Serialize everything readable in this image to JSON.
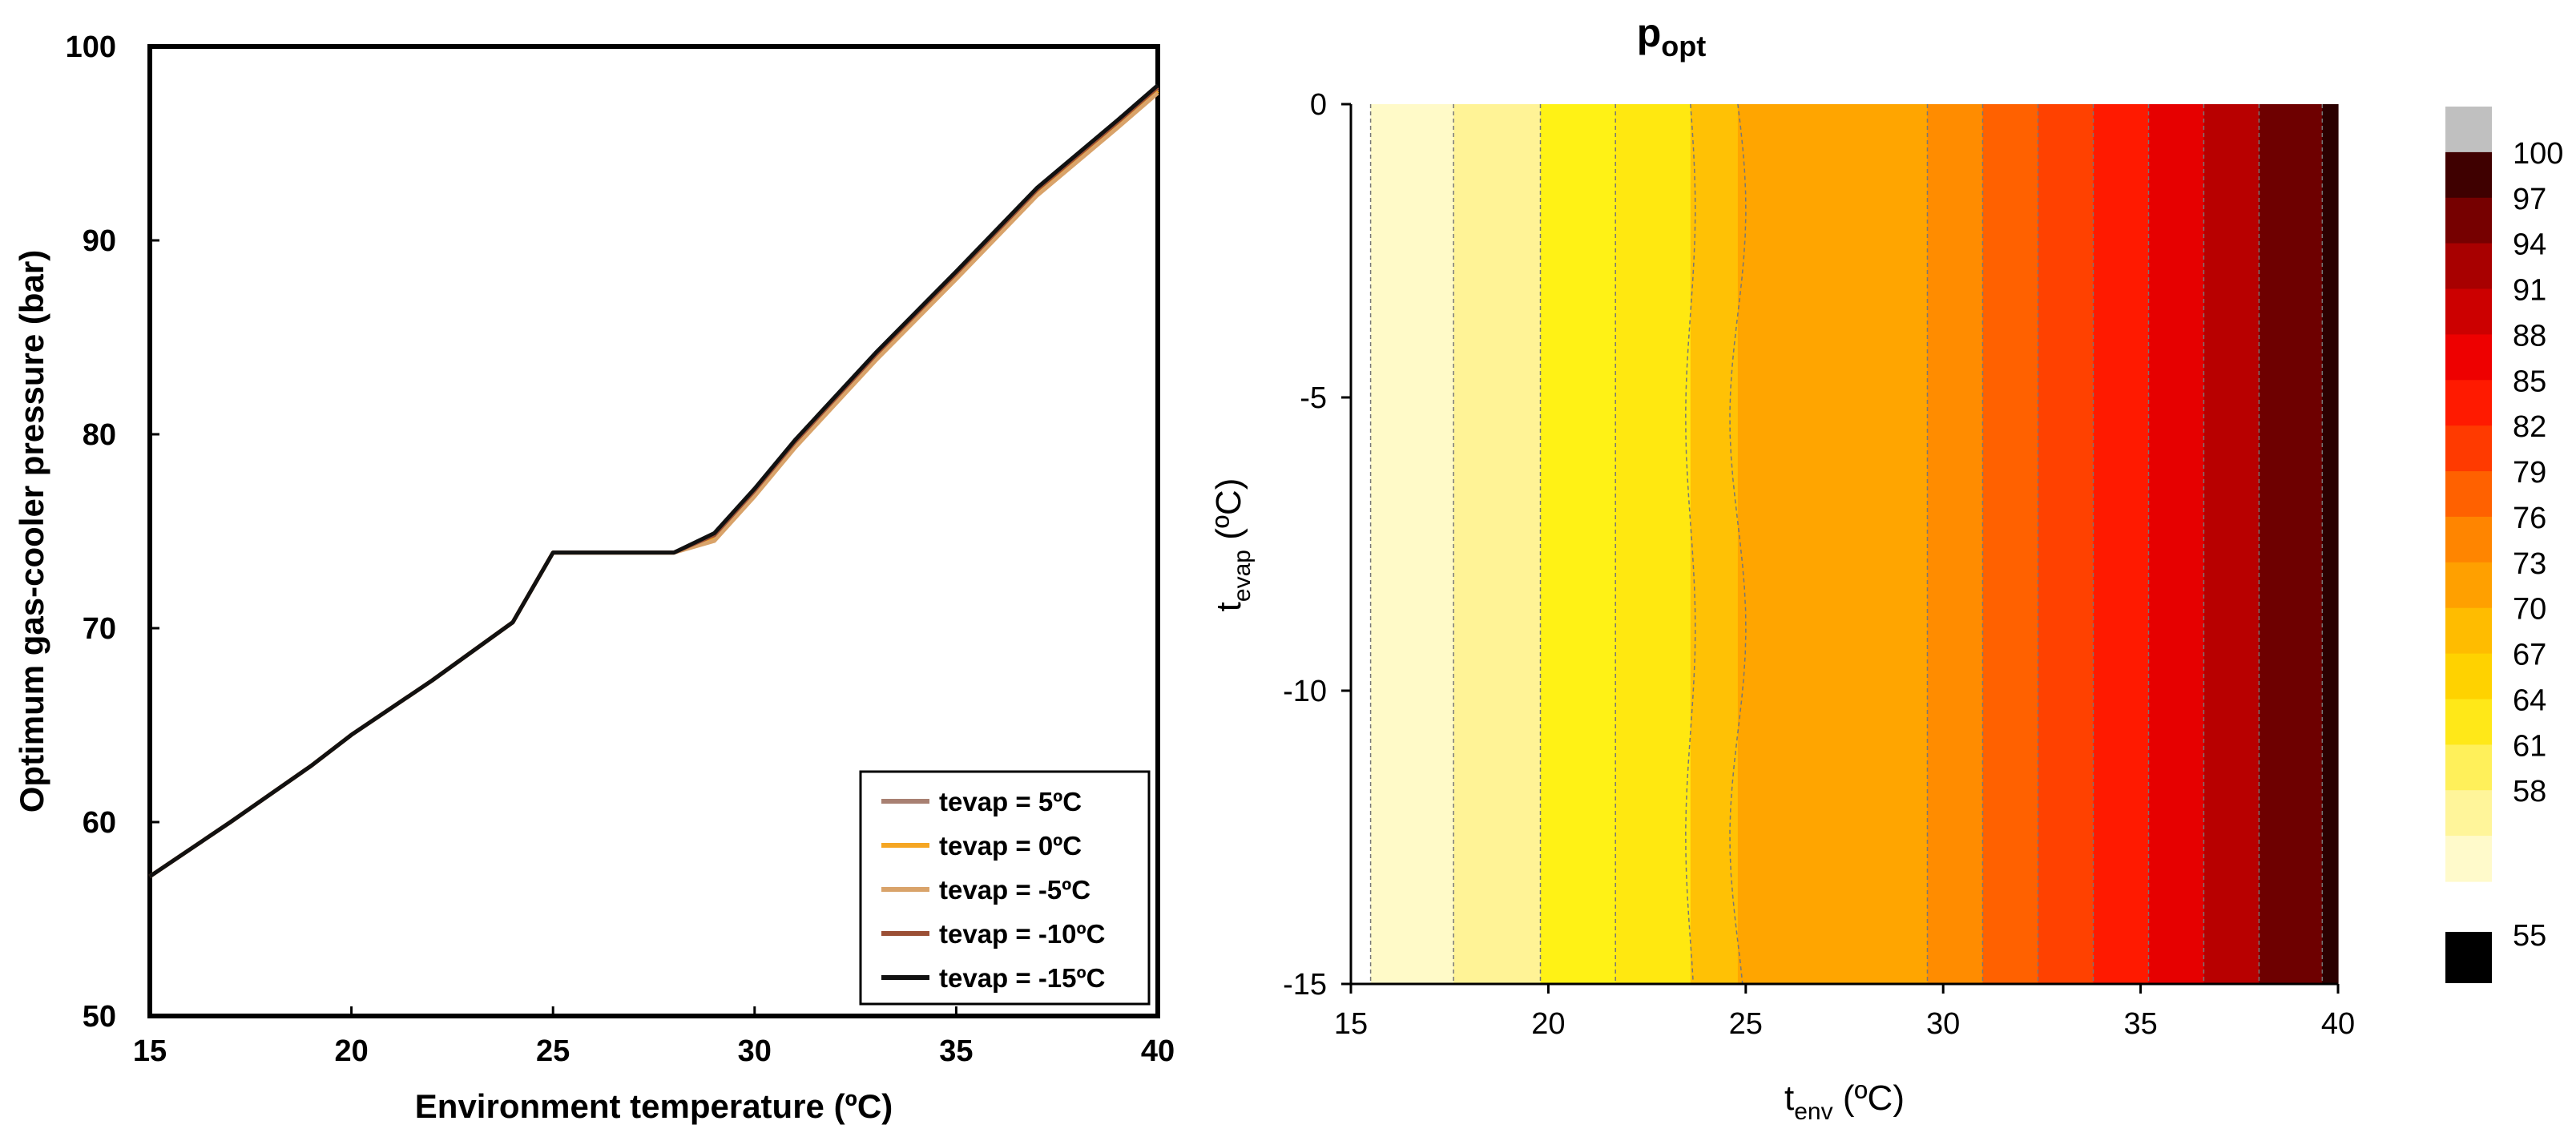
{
  "chart_data": [
    {
      "type": "line",
      "title": "",
      "xlabel": "Environment temperature (ºC)",
      "ylabel": "Optimum gas-cooler pressure (bar)",
      "xlim": [
        15,
        40
      ],
      "ylim": [
        50,
        100
      ],
      "xticks": [
        "15",
        "20",
        "25",
        "30",
        "35",
        "40"
      ],
      "yticks": [
        "50",
        "60",
        "70",
        "80",
        "90",
        "100"
      ],
      "grid": false,
      "legend_position": "bottom-right",
      "series": [
        {
          "name": "tevap = 5ºC",
          "color": "#a88072",
          "x": [
            15,
            17,
            19,
            20,
            22,
            24,
            25,
            26,
            27,
            28,
            29,
            30,
            31,
            33,
            35,
            37,
            39,
            40
          ],
          "y": [
            57.2,
            60.0,
            62.9,
            64.5,
            67.3,
            70.3,
            73.9,
            73.9,
            73.9,
            73.9,
            74.7,
            77.0,
            79.5,
            84.0,
            88.2,
            92.5,
            96.0,
            97.8
          ]
        },
        {
          "name": "tevap = 0ºC",
          "color": "#f5a623",
          "x": [
            15,
            17,
            19,
            20,
            22,
            24,
            25,
            26,
            27,
            28,
            29,
            30,
            31,
            33,
            35,
            37,
            39,
            40
          ],
          "y": [
            57.2,
            60.0,
            62.9,
            64.5,
            67.3,
            70.3,
            73.9,
            73.9,
            73.9,
            73.9,
            74.6,
            76.9,
            79.4,
            83.9,
            88.1,
            92.4,
            95.9,
            97.7
          ]
        },
        {
          "name": "tevap = -5ºC",
          "color": "#d9a36a",
          "x": [
            15,
            17,
            19,
            20,
            22,
            24,
            25,
            26,
            27,
            28,
            29,
            30,
            31,
            33,
            35,
            37,
            39,
            40
          ],
          "y": [
            57.2,
            60.0,
            62.9,
            64.5,
            67.3,
            70.3,
            73.9,
            73.9,
            73.9,
            73.9,
            74.5,
            76.8,
            79.3,
            83.8,
            88.0,
            92.3,
            95.8,
            97.6
          ]
        },
        {
          "name": "tevap = -10ºC",
          "color": "#9b4f35",
          "x": [
            15,
            17,
            19,
            20,
            22,
            24,
            25,
            26,
            27,
            28,
            29,
            30,
            31,
            33,
            35,
            37,
            39,
            40
          ],
          "y": [
            57.2,
            60.0,
            62.9,
            64.5,
            67.3,
            70.3,
            73.9,
            73.9,
            73.9,
            73.9,
            74.8,
            77.1,
            79.6,
            84.1,
            88.3,
            92.6,
            96.1,
            97.9
          ]
        },
        {
          "name": "tevap = -15ºC",
          "color": "#111111",
          "x": [
            15,
            17,
            19,
            20,
            22,
            24,
            25,
            26,
            27,
            28,
            29,
            30,
            31,
            33,
            35,
            37,
            39,
            40
          ],
          "y": [
            57.2,
            60.0,
            62.9,
            64.5,
            67.3,
            70.3,
            73.9,
            73.9,
            73.9,
            73.9,
            74.9,
            77.2,
            79.7,
            84.2,
            88.4,
            92.7,
            96.2,
            98.0
          ]
        }
      ]
    },
    {
      "type": "heatmap",
      "title": "p",
      "title_subscript": "opt",
      "xlabel": "t",
      "xlabel_subscript": "env",
      "xlabel_unit": " (ºC)",
      "ylabel": "t",
      "ylabel_subscript": "evap",
      "ylabel_unit": " (ºC)",
      "xlim": [
        15,
        40
      ],
      "ylim": [
        -15,
        0
      ],
      "xticks": [
        "15",
        "20",
        "25",
        "30",
        "35",
        "40"
      ],
      "yticks": [
        "0",
        "-5",
        "-10",
        "-15"
      ],
      "band_edges_tenv": [
        15.5,
        17.6,
        19.8,
        21.7,
        23.6,
        24.8,
        29.6,
        31.0,
        32.4,
        33.8,
        35.2,
        36.6,
        38.0,
        39.6,
        40.0
      ],
      "band_colors": [
        "#fffac8",
        "#fff396",
        "#fff215",
        "#ffe810",
        "#ffc105",
        "#ffa500",
        "#ff8c00",
        "#ff6100",
        "#ff4100",
        "#ff1a00",
        "#e60000",
        "#b80000",
        "#6e0000",
        "#2b0000"
      ],
      "levels": [
        55,
        58,
        61,
        64,
        67,
        70,
        73,
        76,
        79,
        82,
        85,
        88,
        91,
        94,
        97,
        100
      ],
      "colorbar": {
        "colors": [
          "#fff8cf",
          "#fff3a0",
          "#fff06c",
          "#ffea1f",
          "#ffd700",
          "#ffc000",
          "#ffa500",
          "#ff8c00",
          "#ff6a00",
          "#ff4a00",
          "#ff2a00",
          "#ee0000",
          "#c20000",
          "#8a0000",
          "#4a0000",
          "#c0c0c0"
        ],
        "labels": [
          "100",
          "97",
          "94",
          "91",
          "88",
          "85",
          "82",
          "79",
          "76",
          "73",
          "70",
          "67",
          "64",
          "61",
          "58",
          "55"
        ],
        "below_color": "#000000"
      }
    }
  ]
}
